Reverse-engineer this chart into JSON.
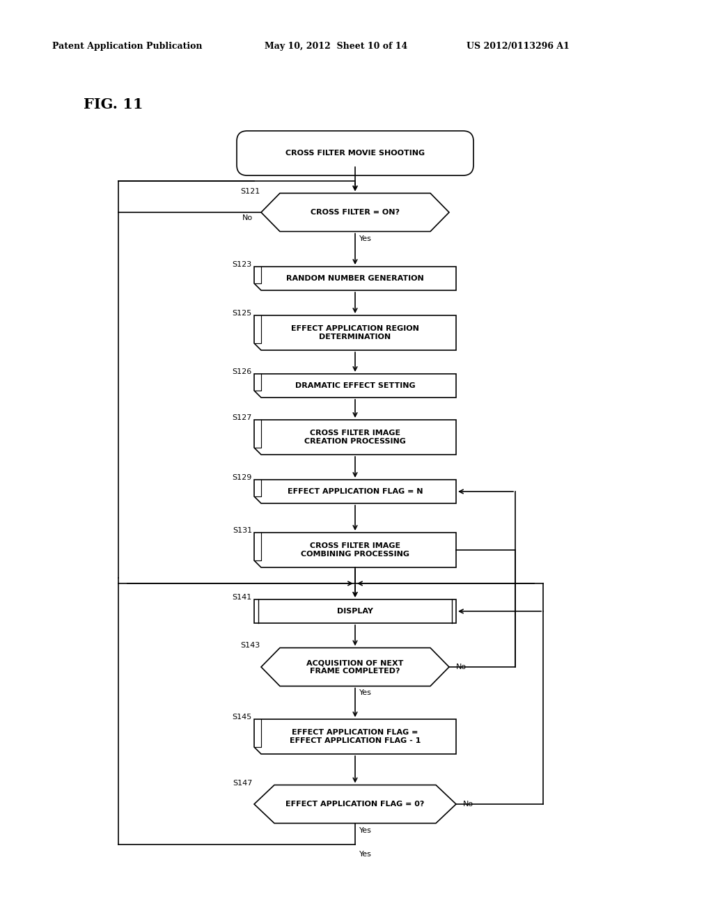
{
  "header_left": "Patent Application Publication",
  "header_mid": "May 10, 2012  Sheet 10 of 14",
  "header_right": "US 2012/0113296 A1",
  "title": "FIG. 11",
  "bg_color": "#ffffff",
  "lw": 1.2,
  "nodes": {
    "start": {
      "label": "CROSS FILTER MOVIE SHOOTING",
      "type": "rounded"
    },
    "S121": {
      "label": "CROSS FILTER = ON?",
      "type": "diamond",
      "step": "S121"
    },
    "S123": {
      "label": "RANDOM NUMBER GENERATION",
      "type": "folded",
      "step": "S123"
    },
    "S125": {
      "label": "EFFECT APPLICATION REGION\nDETERMINATION",
      "type": "folded",
      "step": "S125"
    },
    "S126": {
      "label": "DRAMATIC EFFECT SETTING",
      "type": "folded",
      "step": "S126"
    },
    "S127": {
      "label": "CROSS FILTER IMAGE\nCREATION PROCESSING",
      "type": "folded",
      "step": "S127"
    },
    "S129": {
      "label": "EFFECT APPLICATION FLAG = N",
      "type": "folded",
      "step": "S129"
    },
    "S131": {
      "label": "CROSS FILTER IMAGE\nCOMBINING PROCESSING",
      "type": "folded",
      "step": "S131"
    },
    "S141": {
      "label": "DISPLAY",
      "type": "double",
      "step": "S141"
    },
    "S143": {
      "label": "ACQUISITION OF NEXT\nFRAME COMPLETED?",
      "type": "diamond",
      "step": "S143"
    },
    "S145": {
      "label": "EFFECT APPLICATION FLAG =\nEFFECT APPLICATION FLAG - 1",
      "type": "folded",
      "step": "S145"
    },
    "S147": {
      "label": "EFFECT APPLICATION FLAG = 0?",
      "type": "diamond",
      "step": "S147"
    }
  }
}
